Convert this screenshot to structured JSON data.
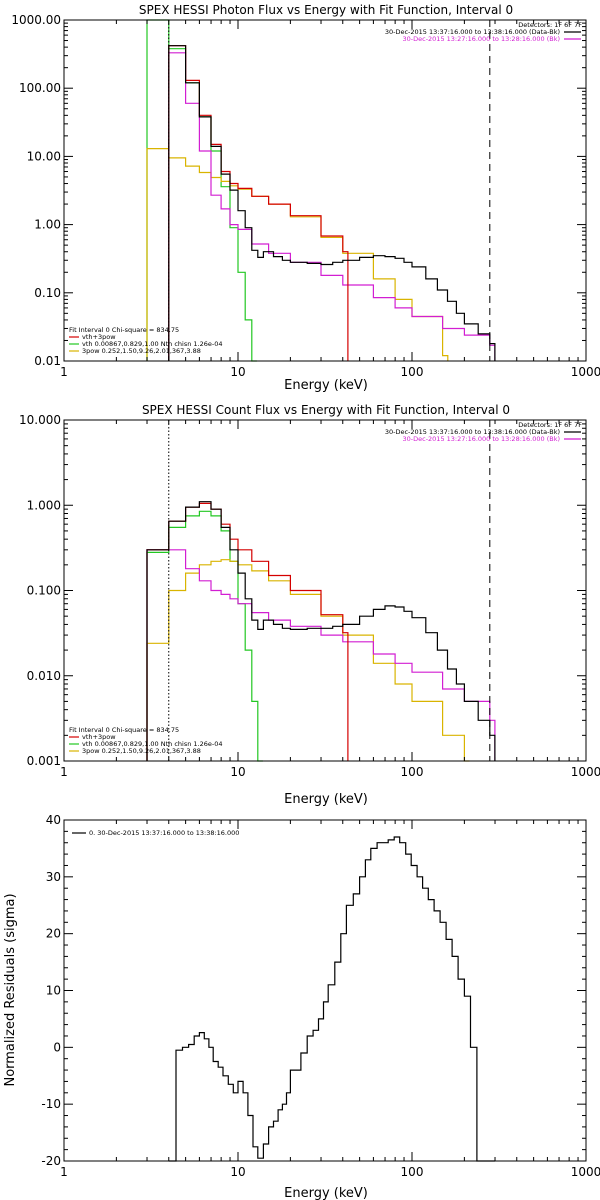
{
  "colors": {
    "black": "#000000",
    "red": "#d40000",
    "magenta": "#d21ed2",
    "green": "#22c722",
    "yellow": "#d9b400"
  },
  "chart_data": [
    {
      "type": "line",
      "title": "SPEX HESSI Photon Flux vs Energy with Fit Function, Interval 0",
      "xlabel": "Energy (keV)",
      "ylabel": "",
      "xscale": "log",
      "yscale": "log",
      "xlim": [
        1,
        1000
      ],
      "ylim": [
        0.01,
        1000
      ],
      "x_ticks": [
        "1",
        "10",
        "100",
        "1000"
      ],
      "y_ticks": [
        {
          "v": 1000,
          "label": "1000.00"
        },
        {
          "v": 100,
          "label": "100.00"
        },
        {
          "v": 10,
          "label": "10.00"
        },
        {
          "v": 1,
          "label": "1.00"
        },
        {
          "v": 0.1,
          "label": "0.10"
        },
        {
          "v": 0.01,
          "label": "0.01"
        }
      ],
      "header_lines": [
        {
          "text": "Detectors: 1F 6F 7F",
          "color": "#000000"
        },
        {
          "text": "30-Dec-2015 13:37:16.000 to 13:38:16.000 (Data-Bk)",
          "color": "#000000"
        },
        {
          "text": "30-Dec-2015 13:27:16.000 to 13:28:16.000 (Bk)",
          "color": "#d21ed2"
        }
      ],
      "fit_info": [
        {
          "text": "Fit Interval 0   Chi-square = 834.75",
          "color": "#000000"
        },
        {
          "text": "vth+3pow",
          "color": "#d40000"
        },
        {
          "text": "vth 0.00867,0.829,1.00  Nth chisn 1.26e-04",
          "color": "#22c722"
        },
        {
          "text": "3pow 0.252,1.50,9.26,2.01,367,3.88",
          "color": "#d9b400"
        }
      ],
      "vlines": [
        {
          "x": 4.0,
          "style": "dotted",
          "color": "#000000"
        },
        {
          "x": 280,
          "style": "dashed",
          "color": "#000000"
        }
      ],
      "series": [
        {
          "color": "#22c722",
          "x": [
            3,
            4,
            5,
            6,
            7,
            8,
            9,
            10,
            11,
            12
          ],
          "y": [
            1000,
            380,
            120,
            38,
            12,
            3.6,
            0.9,
            0.2,
            0.04,
            0.01
          ]
        },
        {
          "color": "#d9b400",
          "x": [
            3,
            4,
            5,
            6,
            7,
            8,
            9,
            10,
            12,
            15,
            20,
            30,
            40,
            60,
            80,
            100,
            150
          ],
          "y": [
            13,
            9.5,
            7.2,
            5.8,
            4.9,
            4.3,
            3.7,
            3.3,
            2.6,
            2.0,
            1.3,
            0.65,
            0.38,
            0.16,
            0.08,
            0.045,
            0.012
          ]
        },
        {
          "color": "#d21ed2",
          "x": [
            4,
            5,
            6,
            7,
            8,
            9,
            10,
            12,
            15,
            20,
            30,
            40,
            60,
            80,
            100,
            150,
            200,
            280
          ],
          "y": [
            330,
            60,
            12,
            2.7,
            1.7,
            1.0,
            0.85,
            0.52,
            0.38,
            0.28,
            0.18,
            0.13,
            0.085,
            0.06,
            0.045,
            0.03,
            0.024,
            0.017
          ]
        },
        {
          "color": "#d40000",
          "x": [
            4,
            5,
            6,
            7,
            8,
            9,
            10,
            12,
            15,
            20,
            30,
            40
          ],
          "y": [
            420,
            130,
            40,
            15,
            6.0,
            4.0,
            3.4,
            2.6,
            2.0,
            1.35,
            0.68,
            0.4
          ]
        },
        {
          "color": "#000000",
          "x": [
            4,
            5,
            6,
            7,
            8,
            9,
            10,
            11,
            12,
            13,
            14,
            16,
            18,
            20,
            25,
            30,
            35,
            40,
            50,
            60,
            70,
            80,
            90,
            100,
            120,
            140,
            160,
            180,
            200,
            240,
            280
          ],
          "y": [
            420,
            120,
            38,
            14,
            5.5,
            3.2,
            1.6,
            0.9,
            0.42,
            0.33,
            0.4,
            0.34,
            0.3,
            0.28,
            0.27,
            0.26,
            0.28,
            0.3,
            0.33,
            0.35,
            0.34,
            0.32,
            0.28,
            0.24,
            0.16,
            0.11,
            0.075,
            0.05,
            0.035,
            0.025,
            0.018
          ]
        }
      ]
    },
    {
      "type": "line",
      "title": "SPEX HESSI Count Flux vs Energy with Fit Function, Interval 0",
      "xlabel": "Energy (keV)",
      "ylabel": "",
      "xscale": "log",
      "yscale": "log",
      "xlim": [
        1,
        1000
      ],
      "ylim": [
        0.001,
        10
      ],
      "x_ticks": [
        "1",
        "10",
        "100",
        "1000"
      ],
      "y_ticks": [
        {
          "v": 10,
          "label": "10.000"
        },
        {
          "v": 1,
          "label": "1.000"
        },
        {
          "v": 0.1,
          "label": "0.100"
        },
        {
          "v": 0.01,
          "label": "0.010"
        },
        {
          "v": 0.001,
          "label": "0.001"
        }
      ],
      "header_lines": [
        {
          "text": "Detectors: 1F 6F 7F",
          "color": "#000000"
        },
        {
          "text": "30-Dec-2015 13:37:16.000 to 13:38:16.000 (Data-Bk)",
          "color": "#000000"
        },
        {
          "text": "30-Dec-2015 13:27:16.000 to 13:28:16.000 (Bk)",
          "color": "#d21ed2"
        }
      ],
      "fit_info": [
        {
          "text": "Fit Interval 0   Chi-square = 834.75",
          "color": "#000000"
        },
        {
          "text": "vth+3pow",
          "color": "#d40000"
        },
        {
          "text": "vth 0.00867,0.829,1.00  Nth chisn 1.26e-04",
          "color": "#22c722"
        },
        {
          "text": "3pow 0.252,1.50,9.26,2.01,367,3.88",
          "color": "#d9b400"
        }
      ],
      "vlines": [
        {
          "x": 4.0,
          "style": "dotted",
          "color": "#000000"
        },
        {
          "x": 280,
          "style": "dashed",
          "color": "#000000"
        }
      ],
      "series": [
        {
          "color": "#22c722",
          "x": [
            3,
            4,
            5,
            6,
            7,
            8,
            9,
            10,
            11,
            12,
            13
          ],
          "y": [
            0.28,
            0.55,
            0.75,
            0.85,
            0.75,
            0.5,
            0.22,
            0.07,
            0.02,
            0.005,
            0.001
          ]
        },
        {
          "color": "#d9b400",
          "x": [
            3,
            4,
            5,
            6,
            7,
            8,
            9,
            10,
            12,
            15,
            20,
            30,
            40,
            60,
            80,
            100,
            150,
            200
          ],
          "y": [
            0.024,
            0.1,
            0.16,
            0.2,
            0.22,
            0.23,
            0.22,
            0.2,
            0.17,
            0.13,
            0.09,
            0.05,
            0.03,
            0.014,
            0.008,
            0.005,
            0.002,
            0.001
          ]
        },
        {
          "color": "#d21ed2",
          "x": [
            3,
            4,
            5,
            6,
            7,
            8,
            9,
            10,
            12,
            15,
            20,
            30,
            40,
            60,
            80,
            100,
            150,
            200,
            280
          ],
          "y": [
            0.3,
            0.3,
            0.18,
            0.13,
            0.1,
            0.09,
            0.08,
            0.07,
            0.055,
            0.045,
            0.038,
            0.03,
            0.025,
            0.018,
            0.014,
            0.011,
            0.007,
            0.005,
            0.003
          ]
        },
        {
          "color": "#d40000",
          "x": [
            3,
            4,
            5,
            6,
            7,
            8,
            9,
            10,
            12,
            15,
            20,
            30,
            40
          ],
          "y": [
            0.3,
            0.65,
            0.95,
            1.05,
            0.9,
            0.6,
            0.4,
            0.3,
            0.22,
            0.15,
            0.1,
            0.052,
            0.032
          ]
        },
        {
          "color": "#000000",
          "x": [
            3,
            4,
            5,
            6,
            7,
            8,
            9,
            10,
            11,
            12,
            13,
            14,
            16,
            18,
            20,
            25,
            30,
            35,
            40,
            50,
            60,
            70,
            80,
            90,
            100,
            120,
            140,
            160,
            180,
            200,
            240,
            280
          ],
          "y": [
            0.3,
            0.65,
            0.95,
            1.1,
            0.9,
            0.55,
            0.3,
            0.16,
            0.08,
            0.045,
            0.035,
            0.045,
            0.04,
            0.036,
            0.035,
            0.036,
            0.036,
            0.038,
            0.04,
            0.05,
            0.06,
            0.066,
            0.064,
            0.057,
            0.048,
            0.032,
            0.02,
            0.012,
            0.008,
            0.005,
            0.003,
            0.002
          ]
        }
      ]
    },
    {
      "type": "line",
      "title": "",
      "xlabel": "Energy (keV)",
      "ylabel": "Normalized Residuals (sigma)",
      "xscale": "log",
      "yscale": "linear",
      "xlim": [
        1,
        1000
      ],
      "ylim": [
        -20,
        40
      ],
      "x_ticks": [
        "1",
        "10",
        "100",
        "1000"
      ],
      "y_ticks": [
        {
          "v": 40,
          "label": "40"
        },
        {
          "v": 30,
          "label": "30"
        },
        {
          "v": 20,
          "label": "20"
        },
        {
          "v": 10,
          "label": "10"
        },
        {
          "v": 0,
          "label": "0"
        },
        {
          "v": -10,
          "label": "-10"
        },
        {
          "v": -20,
          "label": "-20"
        }
      ],
      "legend": {
        "text": "0. 30-Dec-2015 13:37:16.000 to 13:38:16.000",
        "position": "top-left"
      },
      "series": [
        {
          "color": "#000000",
          "x": [
            4,
            4.4,
            4.8,
            5.2,
            5.6,
            6.0,
            6.4,
            6.8,
            7.2,
            7.7,
            8.2,
            8.8,
            9.4,
            10,
            10.7,
            11.4,
            12.2,
            13,
            14,
            15,
            16,
            17,
            18,
            19,
            20,
            21.5,
            23,
            25,
            27,
            29,
            31,
            33,
            36,
            39,
            42,
            46,
            50,
            54,
            58,
            63,
            68,
            73,
            79,
            85,
            92,
            99,
            107,
            115,
            124,
            134,
            145,
            157,
            170,
            184,
            200,
            217,
            236,
            256,
            280
          ],
          "y": [
            -20,
            -0.5,
            0,
            0.5,
            2,
            2.6,
            1.5,
            0,
            -2.5,
            -3.5,
            -5,
            -6.5,
            -8,
            -6,
            -8,
            -12,
            -17.5,
            -19.5,
            -17,
            -14,
            -13,
            -11,
            -10,
            -8,
            -4,
            -4,
            -1,
            2,
            3,
            5,
            8,
            11,
            15,
            20,
            25,
            27,
            30,
            33,
            35,
            36,
            36,
            36.5,
            37,
            36,
            34,
            32,
            30,
            28,
            26,
            24,
            22,
            19,
            16,
            12,
            9,
            0,
            -20,
            -20,
            -20
          ]
        }
      ]
    }
  ]
}
